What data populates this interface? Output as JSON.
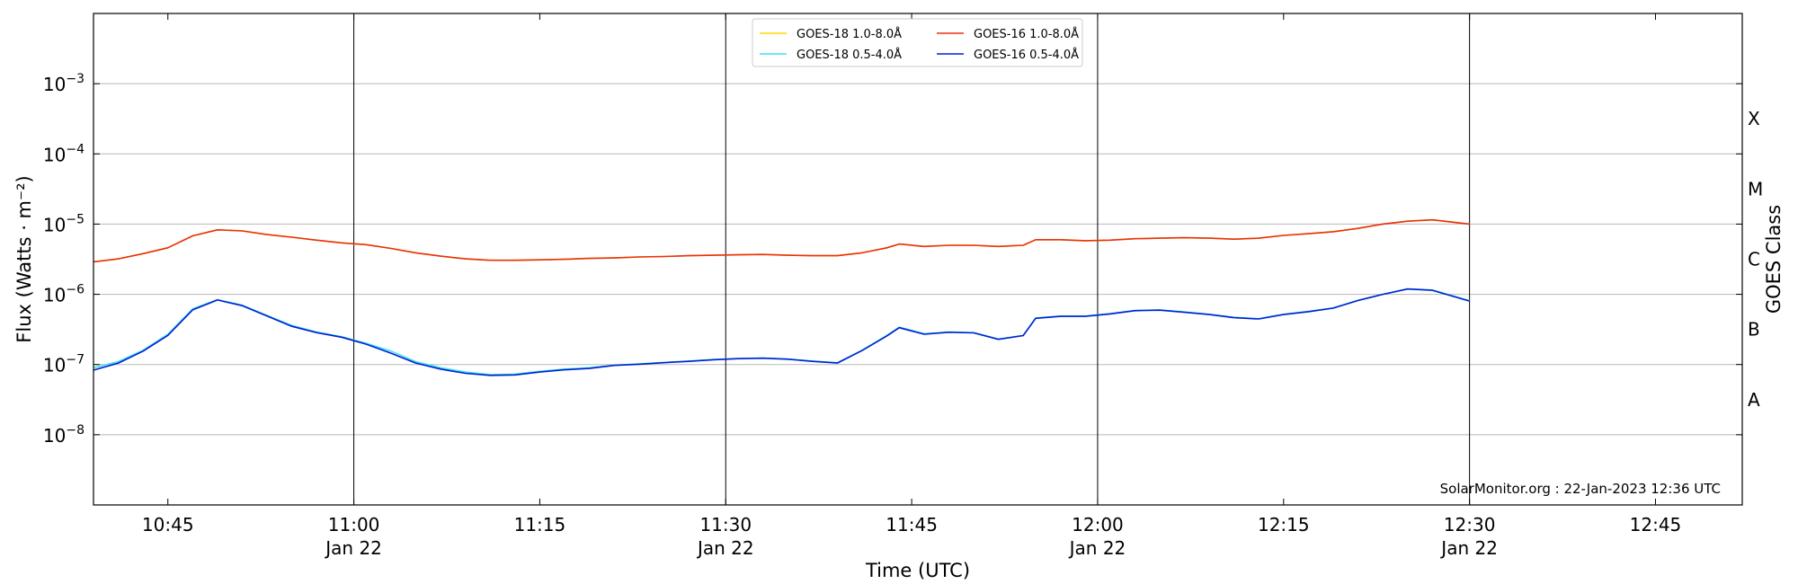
{
  "chart_data": {
    "type": "line",
    "xlabel": "Time (UTC)",
    "ylabel": "Flux (Watts · m⁻²)",
    "ylabel_right": "GOES Class",
    "annotation": "SolarMonitor.org : 22-Jan-2023 12:36 UTC",
    "y_scale": "log",
    "ylim": [
      1e-09,
      0.01
    ],
    "xlim": [
      "10:39",
      "12:52"
    ],
    "grid": {
      "horizontal": true,
      "vertical_at_half_hours": true
    },
    "x_ticks": [
      {
        "time": "10:45",
        "label": "10:45",
        "date": ""
      },
      {
        "time": "11:00",
        "label": "11:00",
        "date": "Jan 22"
      },
      {
        "time": "11:15",
        "label": "11:15",
        "date": ""
      },
      {
        "time": "11:30",
        "label": "11:30",
        "date": "Jan 22"
      },
      {
        "time": "11:45",
        "label": "11:45",
        "date": ""
      },
      {
        "time": "12:00",
        "label": "12:00",
        "date": "Jan 22"
      },
      {
        "time": "12:15",
        "label": "12:15",
        "date": ""
      },
      {
        "time": "12:30",
        "label": "12:30",
        "date": "Jan 22"
      },
      {
        "time": "12:45",
        "label": "12:45",
        "date": ""
      }
    ],
    "y_ticks": [
      {
        "exp": -8,
        "label": "10",
        "sup": "−8"
      },
      {
        "exp": -7,
        "label": "10",
        "sup": "−7"
      },
      {
        "exp": -6,
        "label": "10",
        "sup": "−6"
      },
      {
        "exp": -5,
        "label": "10",
        "sup": "−5"
      },
      {
        "exp": -4,
        "label": "10",
        "sup": "−4"
      },
      {
        "exp": -3,
        "label": "10",
        "sup": "−3"
      }
    ],
    "goes_classes": [
      {
        "label": "A",
        "exp": -7.5
      },
      {
        "label": "B",
        "exp": -6.5
      },
      {
        "label": "C",
        "exp": -5.5
      },
      {
        "label": "M",
        "exp": -4.5
      },
      {
        "label": "X",
        "exp": -3.5
      }
    ],
    "legend": {
      "placement": "top-center",
      "columns": 2
    },
    "series": [
      {
        "name": "GOES-18 1.0-8.0Å",
        "color": "#ffd700",
        "x": [
          "10:39",
          "10:41",
          "10:43",
          "10:45",
          "10:47",
          "10:49",
          "10:51",
          "10:53",
          "10:55",
          "10:57",
          "10:59",
          "11:01",
          "11:03",
          "11:05",
          "11:07",
          "11:09",
          "11:11",
          "11:13",
          "11:15",
          "11:17",
          "11:19",
          "11:21",
          "11:23",
          "11:25",
          "11:27",
          "11:29",
          "11:31",
          "11:33",
          "11:35",
          "11:37",
          "11:39",
          "11:41",
          "11:43",
          "11:44",
          "11:46",
          "11:48",
          "11:50",
          "11:52",
          "11:54",
          "11:55",
          "11:57",
          "11:59",
          "12:01",
          "12:03",
          "12:05",
          "12:07",
          "12:09",
          "12:11",
          "12:13",
          "12:15",
          "12:17",
          "12:19",
          "12:21",
          "12:23",
          "12:25",
          "12:27",
          "12:30"
        ],
        "y": [
          2.9e-06,
          3.2e-06,
          3.8e-06,
          4.6e-06,
          6.8e-06,
          8.3e-06,
          8e-06,
          7.1e-06,
          6.5e-06,
          5.9e-06,
          5.4e-06,
          5.1e-06,
          4.5e-06,
          3.9e-06,
          3.5e-06,
          3.2e-06,
          3.05e-06,
          3.05e-06,
          3.1e-06,
          3.15e-06,
          3.25e-06,
          3.3e-06,
          3.4e-06,
          3.45e-06,
          3.55e-06,
          3.6e-06,
          3.65e-06,
          3.7e-06,
          3.6e-06,
          3.55e-06,
          3.55e-06,
          3.9e-06,
          4.6e-06,
          5.2e-06,
          4.8e-06,
          5e-06,
          5e-06,
          4.8e-06,
          5e-06,
          6e-06,
          6e-06,
          5.8e-06,
          5.9e-06,
          6.2e-06,
          6.3e-06,
          6.4e-06,
          6.3e-06,
          6.1e-06,
          6.3e-06,
          6.9e-06,
          7.3e-06,
          7.8e-06,
          8.7e-06,
          1e-05,
          1.1e-05,
          1.15e-05,
          1e-05
        ]
      },
      {
        "name": "GOES-18 0.5-4.0Å",
        "color": "#40e0f0",
        "x": [
          "10:39",
          "10:41",
          "10:43",
          "10:45",
          "10:47",
          "10:49",
          "10:51",
          "10:53",
          "10:55",
          "10:57",
          "10:59",
          "11:01",
          "11:03",
          "11:05",
          "11:07",
          "11:09",
          "11:11",
          "11:13",
          "11:15",
          "11:17",
          "11:19",
          "11:21",
          "11:23",
          "11:25",
          "11:27",
          "11:29",
          "11:31",
          "11:33",
          "11:35",
          "11:37",
          "11:39",
          "11:41",
          "11:43",
          "11:44",
          "11:46",
          "11:48",
          "11:50",
          "11:52",
          "11:54",
          "11:55",
          "11:57",
          "11:59",
          "12:01",
          "12:03",
          "12:05",
          "12:07",
          "12:09",
          "12:11",
          "12:13",
          "12:15",
          "12:17",
          "12:19",
          "12:21",
          "12:23",
          "12:25",
          "12:27",
          "12:30"
        ],
        "y": [
          9e-08,
          1.1e-07,
          1.6e-07,
          2.7e-07,
          6.2e-07,
          8.4e-07,
          7e-07,
          5e-07,
          3.6e-07,
          2.9e-07,
          2.5e-07,
          2e-07,
          1.55e-07,
          1.1e-07,
          9e-08,
          7.8e-08,
          7.2e-08,
          7.3e-08,
          8e-08,
          8.6e-08,
          9e-08,
          9.8e-08,
          1.02e-07,
          1.07e-07,
          1.12e-07,
          1.18e-07,
          1.22e-07,
          1.24e-07,
          1.2e-07,
          1.12e-07,
          1.06e-07,
          1.6e-07,
          2.6e-07,
          3.4e-07,
          2.75e-07,
          2.9e-07,
          2.85e-07,
          2.3e-07,
          2.6e-07,
          4.6e-07,
          4.9e-07,
          4.9e-07,
          5.3e-07,
          5.9e-07,
          6e-07,
          5.6e-07,
          5.2e-07,
          4.7e-07,
          4.5e-07,
          5.2e-07,
          5.7e-07,
          6.4e-07,
          8.2e-07,
          1e-06,
          1.2e-06,
          1.15e-06,
          8.1e-07
        ]
      },
      {
        "name": "GOES-16 1.0-8.0Å",
        "color": "#e83010",
        "x": [
          "10:39",
          "10:41",
          "10:43",
          "10:45",
          "10:47",
          "10:49",
          "10:51",
          "10:53",
          "10:55",
          "10:57",
          "10:59",
          "11:01",
          "11:03",
          "11:05",
          "11:07",
          "11:09",
          "11:11",
          "11:13",
          "11:15",
          "11:17",
          "11:19",
          "11:21",
          "11:23",
          "11:25",
          "11:27",
          "11:29",
          "11:31",
          "11:33",
          "11:35",
          "11:37",
          "11:39",
          "11:41",
          "11:43",
          "11:44",
          "11:46",
          "11:48",
          "11:50",
          "11:52",
          "11:54",
          "11:55",
          "11:57",
          "11:59",
          "12:01",
          "12:03",
          "12:05",
          "12:07",
          "12:09",
          "12:11",
          "12:13",
          "12:15",
          "12:17",
          "12:19",
          "12:21",
          "12:23",
          "12:25",
          "12:27",
          "12:30"
        ],
        "y": [
          2.9e-06,
          3.2e-06,
          3.8e-06,
          4.6e-06,
          6.8e-06,
          8.3e-06,
          8e-06,
          7.1e-06,
          6.5e-06,
          5.9e-06,
          5.4e-06,
          5.1e-06,
          4.5e-06,
          3.9e-06,
          3.5e-06,
          3.2e-06,
          3.05e-06,
          3.05e-06,
          3.1e-06,
          3.15e-06,
          3.25e-06,
          3.3e-06,
          3.4e-06,
          3.45e-06,
          3.55e-06,
          3.6e-06,
          3.65e-06,
          3.7e-06,
          3.6e-06,
          3.55e-06,
          3.55e-06,
          3.9e-06,
          4.6e-06,
          5.2e-06,
          4.8e-06,
          5e-06,
          5e-06,
          4.8e-06,
          5e-06,
          6e-06,
          6e-06,
          5.8e-06,
          5.9e-06,
          6.2e-06,
          6.3e-06,
          6.4e-06,
          6.3e-06,
          6.1e-06,
          6.3e-06,
          6.9e-06,
          7.3e-06,
          7.8e-06,
          8.7e-06,
          1e-05,
          1.1e-05,
          1.15e-05,
          1e-05
        ]
      },
      {
        "name": "GOES-16 0.5-4.0Å",
        "color": "#0020d0",
        "x": [
          "10:39",
          "10:41",
          "10:43",
          "10:45",
          "10:47",
          "10:49",
          "10:51",
          "10:53",
          "10:55",
          "10:57",
          "10:59",
          "11:01",
          "11:03",
          "11:05",
          "11:07",
          "11:09",
          "11:11",
          "11:13",
          "11:15",
          "11:17",
          "11:19",
          "11:21",
          "11:23",
          "11:25",
          "11:27",
          "11:29",
          "11:31",
          "11:33",
          "11:35",
          "11:37",
          "11:39",
          "11:41",
          "11:43",
          "11:44",
          "11:46",
          "11:48",
          "11:50",
          "11:52",
          "11:54",
          "11:55",
          "11:57",
          "11:59",
          "12:01",
          "12:03",
          "12:05",
          "12:07",
          "12:09",
          "12:11",
          "12:13",
          "12:15",
          "12:17",
          "12:19",
          "12:21",
          "12:23",
          "12:25",
          "12:27",
          "12:30"
        ],
        "y": [
          8.3e-08,
          1.05e-07,
          1.55e-07,
          2.6e-07,
          6e-07,
          8.3e-07,
          6.9e-07,
          4.9e-07,
          3.5e-07,
          2.85e-07,
          2.45e-07,
          1.95e-07,
          1.45e-07,
          1.05e-07,
          8.6e-08,
          7.5e-08,
          7e-08,
          7.1e-08,
          7.8e-08,
          8.4e-08,
          8.8e-08,
          9.7e-08,
          1.01e-07,
          1.06e-07,
          1.11e-07,
          1.17e-07,
          1.21e-07,
          1.23e-07,
          1.19e-07,
          1.11e-07,
          1.05e-07,
          1.58e-07,
          2.55e-07,
          3.35e-07,
          2.7e-07,
          2.88e-07,
          2.82e-07,
          2.28e-07,
          2.58e-07,
          4.55e-07,
          4.85e-07,
          4.85e-07,
          5.25e-07,
          5.85e-07,
          5.95e-07,
          5.55e-07,
          5.15e-07,
          4.65e-07,
          4.45e-07,
          5.15e-07,
          5.65e-07,
          6.35e-07,
          8.15e-07,
          1e-06,
          1.19e-06,
          1.14e-06,
          8e-07
        ]
      }
    ]
  }
}
